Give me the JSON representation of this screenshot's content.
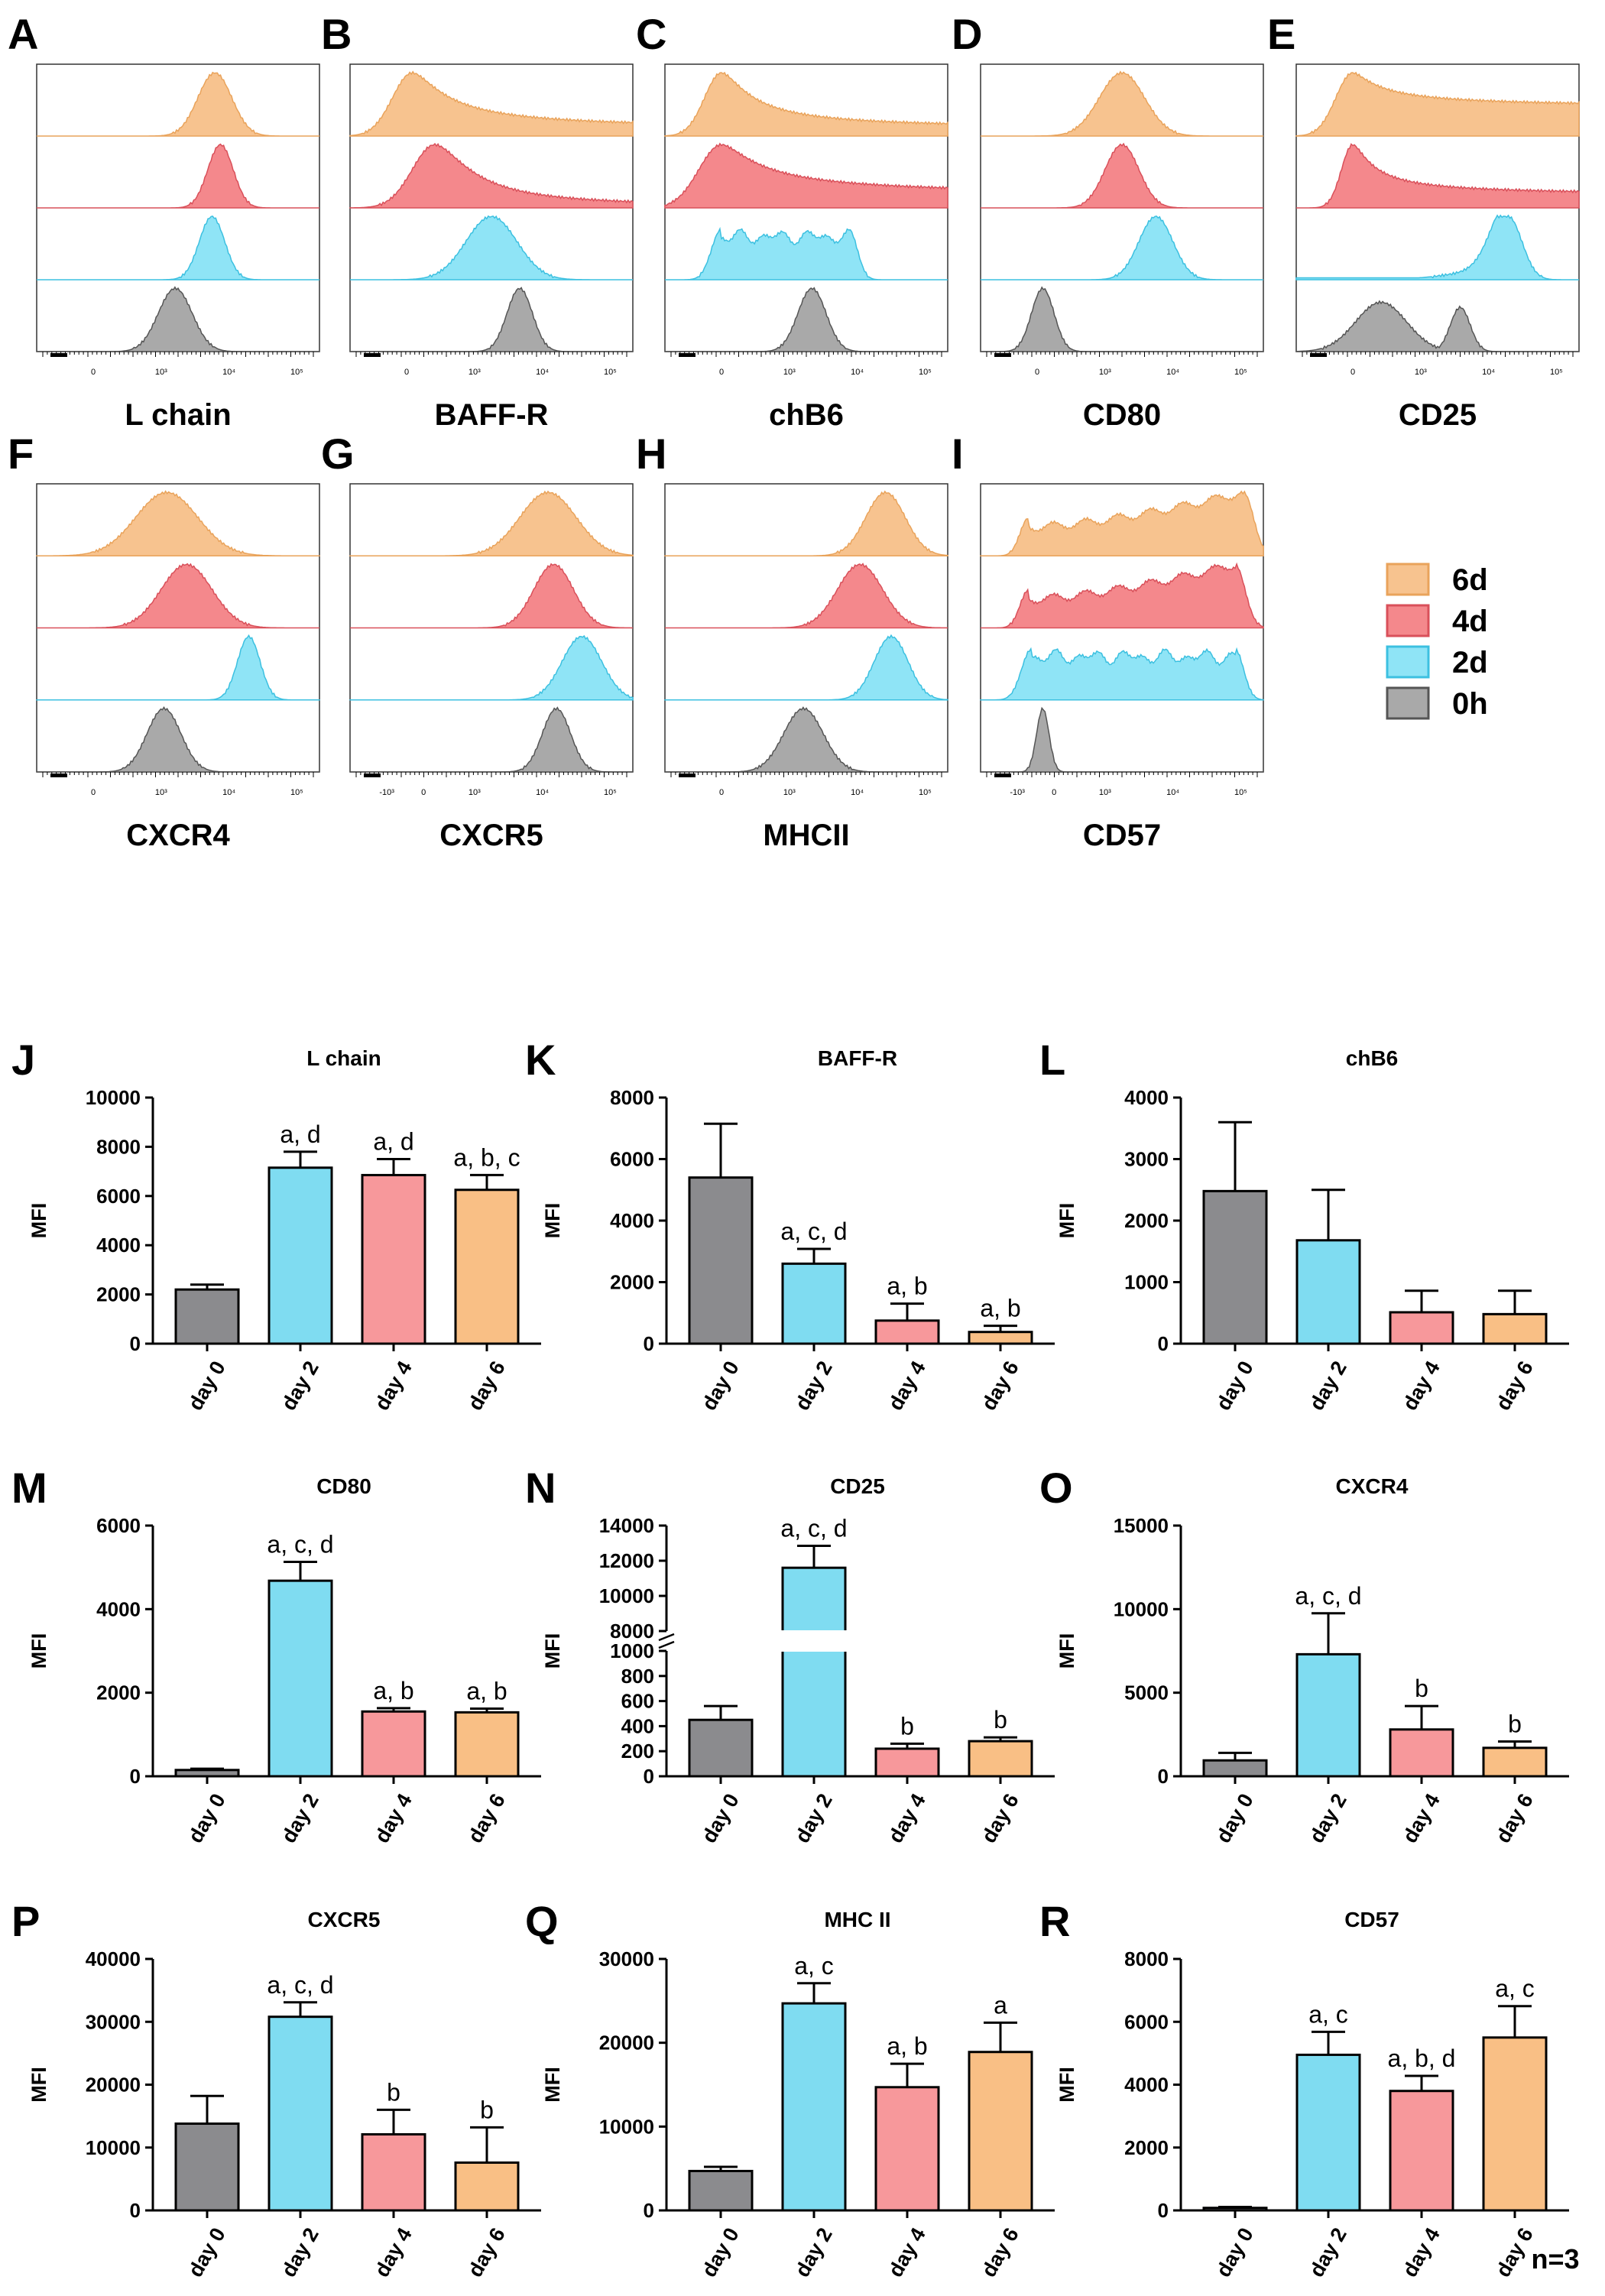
{
  "colors": {
    "0h": "#8b8b8e",
    "2d": "#7fdcf1",
    "4d": "#f7989b",
    "6d": "#f9bf85",
    "hist_0h_fill": "#a9a9a9",
    "hist_0h_line": "#555555",
    "hist_2d_fill": "#8fe4f6",
    "hist_2d_line": "#3cc0e0",
    "hist_4d_fill": "#f4888c",
    "hist_4d_line": "#d9505a",
    "hist_6d_fill": "#f7c38f",
    "hist_6d_line": "#e9a35b"
  },
  "legend": {
    "entries": [
      {
        "key": "6d",
        "label": "6d"
      },
      {
        "key": "4d",
        "label": "4d"
      },
      {
        "key": "2d",
        "label": "2d"
      },
      {
        "key": "0h",
        "label": "0h"
      }
    ]
  },
  "histograms": [
    {
      "letter": "A",
      "marker": "L chain",
      "ticks": [
        "0",
        "10³",
        "10⁴",
        "10⁵"
      ],
      "curves": {
        "6d": {
          "type": "normal",
          "peak": 0.63,
          "sd": 0.06
        },
        "4d": {
          "type": "normal",
          "peak": 0.65,
          "sd": 0.045
        },
        "2d": {
          "type": "normal",
          "peak": 0.62,
          "sd": 0.045
        },
        "0h": {
          "type": "normal",
          "peak": 0.49,
          "sd": 0.06
        }
      }
    },
    {
      "letter": "B",
      "marker": "BAFF-R",
      "ticks": [
        "0",
        "10³",
        "10⁴",
        "10⁵"
      ],
      "curves": {
        "6d": {
          "type": "skew",
          "peak": 0.22,
          "sd": 0.07,
          "tail": 0.3
        },
        "4d": {
          "type": "skew",
          "peak": 0.3,
          "sd": 0.08,
          "tail": 0.22
        },
        "2d": {
          "type": "normal",
          "peak": 0.5,
          "sd": 0.09
        },
        "0h": {
          "type": "normal",
          "peak": 0.6,
          "sd": 0.045
        }
      }
    },
    {
      "letter": "C",
      "marker": "chB6",
      "ticks": [
        "0",
        "10³",
        "10⁴",
        "10⁵"
      ],
      "curves": {
        "6d": {
          "type": "skew",
          "peak": 0.2,
          "sd": 0.06,
          "tail": 0.3
        },
        "4d": {
          "type": "skew",
          "peak": 0.2,
          "sd": 0.08,
          "tail": 0.35
        },
        "2d": {
          "type": "plateau",
          "from": 0.2,
          "to": 0.65
        },
        "0h": {
          "type": "normal",
          "peak": 0.52,
          "sd": 0.05
        }
      }
    },
    {
      "letter": "D",
      "marker": "CD80",
      "ticks": [
        "0",
        "10³",
        "10⁴",
        "10⁵"
      ],
      "curves": {
        "6d": {
          "type": "normal",
          "peak": 0.5,
          "sd": 0.08
        },
        "4d": {
          "type": "normal",
          "peak": 0.5,
          "sd": 0.06
        },
        "2d": {
          "type": "normal",
          "peak": 0.62,
          "sd": 0.06
        },
        "0h": {
          "type": "normal",
          "peak": 0.22,
          "sd": 0.04
        }
      }
    },
    {
      "letter": "E",
      "marker": "CD25",
      "ticks": [
        "0",
        "10³",
        "10⁴",
        "10⁵"
      ],
      "curves": {
        "6d": {
          "type": "skew",
          "peak": 0.2,
          "sd": 0.06,
          "tail": 0.5
        },
        "4d": {
          "type": "skew",
          "peak": 0.2,
          "sd": 0.04,
          "tail": 0.35
        },
        "2d": {
          "type": "rising",
          "peak": 0.75,
          "sd": 0.06
        },
        "0h": {
          "type": "bimodal",
          "p1": 0.3,
          "sd1": 0.09,
          "p2": 0.58,
          "sd2": 0.035
        }
      }
    },
    {
      "letter": "F",
      "marker": "CXCR4",
      "ticks": [
        "0",
        "10³",
        "10⁴",
        "10⁵"
      ],
      "curves": {
        "6d": {
          "type": "normal",
          "peak": 0.46,
          "sd": 0.11
        },
        "4d": {
          "type": "normal",
          "peak": 0.53,
          "sd": 0.09
        },
        "2d": {
          "type": "normal",
          "peak": 0.75,
          "sd": 0.04
        },
        "0h": {
          "type": "normal",
          "peak": 0.45,
          "sd": 0.06
        }
      }
    },
    {
      "letter": "G",
      "marker": "CXCR5",
      "ticks": [
        "-10³",
        "0",
        "10³",
        "10⁴",
        "10⁵"
      ],
      "curves": {
        "6d": {
          "type": "normal",
          "peak": 0.7,
          "sd": 0.1
        },
        "4d": {
          "type": "normal",
          "peak": 0.72,
          "sd": 0.07
        },
        "2d": {
          "type": "normal",
          "peak": 0.82,
          "sd": 0.07
        },
        "0h": {
          "type": "normal",
          "peak": 0.73,
          "sd": 0.05
        }
      }
    },
    {
      "letter": "H",
      "marker": "MHCII",
      "ticks": [
        "0",
        "10³",
        "10⁴",
        "10⁵"
      ],
      "curves": {
        "6d": {
          "type": "normal",
          "peak": 0.78,
          "sd": 0.07
        },
        "4d": {
          "type": "normal",
          "peak": 0.69,
          "sd": 0.08
        },
        "2d": {
          "type": "normal",
          "peak": 0.8,
          "sd": 0.06
        },
        "0h": {
          "type": "normal",
          "peak": 0.49,
          "sd": 0.07
        }
      }
    },
    {
      "letter": "I",
      "marker": "CD57",
      "ticks": [
        "-10³",
        "0",
        "10³",
        "10⁴",
        "10⁵"
      ],
      "curves": {
        "6d": {
          "type": "broad",
          "from": 0.17,
          "to": 0.93
        },
        "4d": {
          "type": "broad",
          "from": 0.17,
          "to": 0.9
        },
        "2d": {
          "type": "plateau",
          "from": 0.18,
          "to": 0.9
        },
        "0h": {
          "type": "normal",
          "peak": 0.22,
          "sd": 0.022
        }
      }
    }
  ],
  "chart_data": [
    {
      "panel": "J",
      "type": "bar",
      "title": "L chain",
      "ylabel": "MFI",
      "categories": [
        "day 0",
        "day 2",
        "day 4",
        "day 6"
      ],
      "values": [
        2200,
        7150,
        6850,
        6250
      ],
      "errors": [
        200,
        650,
        650,
        600
      ],
      "annotations": [
        "",
        "a, d",
        "a, d",
        "a, b, c"
      ],
      "ylim": [
        0,
        10000
      ],
      "yticks": [
        "0",
        "2000",
        "4000",
        "6000",
        "8000",
        "10000"
      ]
    },
    {
      "panel": "K",
      "type": "bar",
      "title": "BAFF-R",
      "ylabel": "MFI",
      "categories": [
        "day 0",
        "day 2",
        "day 4",
        "day 6"
      ],
      "values": [
        5400,
        2600,
        750,
        380
      ],
      "errors": [
        1750,
        480,
        550,
        200
      ],
      "annotations": [
        "",
        "a, c, d",
        "a, b",
        "a, b"
      ],
      "ylim": [
        0,
        8000
      ],
      "yticks": [
        "0",
        "2000",
        "4000",
        "6000",
        "8000"
      ]
    },
    {
      "panel": "L",
      "type": "bar",
      "title": "chB6",
      "ylabel": "MFI",
      "categories": [
        "day 0",
        "day 2",
        "day 4",
        "day 6"
      ],
      "values": [
        2480,
        1680,
        510,
        480
      ],
      "errors": [
        1120,
        820,
        350,
        380
      ],
      "annotations": [
        "",
        "",
        "",
        ""
      ],
      "ylim": [
        0,
        4000
      ],
      "yticks": [
        "0",
        "1000",
        "2000",
        "3000",
        "4000"
      ]
    },
    {
      "panel": "M",
      "type": "bar",
      "title": "CD80",
      "ylabel": "MFI",
      "categories": [
        "day 0",
        "day 2",
        "day 4",
        "day 6"
      ],
      "values": [
        150,
        4680,
        1550,
        1530
      ],
      "errors": [
        30,
        450,
        80,
        90
      ],
      "annotations": [
        "",
        "a, c, d",
        "a, b",
        "a, b"
      ],
      "ylim": [
        0,
        6000
      ],
      "yticks": [
        "0",
        "2000",
        "4000",
        "6000"
      ]
    },
    {
      "panel": "N",
      "type": "bar",
      "title": "CD25",
      "ylabel": "MFI",
      "categories": [
        "day 0",
        "day 2",
        "day 4",
        "day 6"
      ],
      "values": [
        450,
        11600,
        220,
        280
      ],
      "errors": [
        110,
        1250,
        40,
        30
      ],
      "annotations": [
        "",
        "a, c, d",
        "b",
        "b"
      ],
      "broken_axis": {
        "lower_max": 1000,
        "upper_min": 8000,
        "upper_max": 14000
      },
      "yticks_lower": [
        "0",
        "200",
        "400",
        "600",
        "800",
        "1000"
      ],
      "yticks_upper": [
        "8000",
        "10000",
        "12000",
        "14000"
      ]
    },
    {
      "panel": "O",
      "type": "bar",
      "title": "CXCR4",
      "ylabel": "MFI",
      "categories": [
        "day 0",
        "day 2",
        "day 4",
        "day 6"
      ],
      "values": [
        950,
        7300,
        2800,
        1700
      ],
      "errors": [
        450,
        2450,
        1400,
        380
      ],
      "annotations": [
        "",
        "a, c, d",
        "b",
        "b"
      ],
      "ylim": [
        0,
        15000
      ],
      "yticks": [
        "0",
        "5000",
        "10000",
        "15000"
      ]
    },
    {
      "panel": "P",
      "type": "bar",
      "title": "CXCR5",
      "ylabel": "MFI",
      "categories": [
        "day 0",
        "day 2",
        "day 4",
        "day 6"
      ],
      "values": [
        13800,
        30800,
        12100,
        7600
      ],
      "errors": [
        4400,
        2300,
        3900,
        5600
      ],
      "annotations": [
        "",
        "a, c, d",
        "b",
        "b"
      ],
      "ylim": [
        0,
        40000
      ],
      "yticks": [
        "0",
        "10000",
        "20000",
        "30000",
        "40000"
      ]
    },
    {
      "panel": "Q",
      "type": "bar",
      "title": "MHC II",
      "ylabel": "MFI",
      "categories": [
        "day 0",
        "day 2",
        "day 4",
        "day 6"
      ],
      "values": [
        4700,
        24700,
        14700,
        18900
      ],
      "errors": [
        500,
        2400,
        2800,
        3500
      ],
      "annotations": [
        "",
        "a, c",
        "a, b",
        "a"
      ],
      "ylim": [
        0,
        30000
      ],
      "yticks": [
        "0",
        "10000",
        "20000",
        "30000"
      ]
    },
    {
      "panel": "R",
      "type": "bar",
      "title": "CD57",
      "ylabel": "MFI",
      "categories": [
        "day 0",
        "day 2",
        "day 4",
        "day 6"
      ],
      "values": [
        80,
        4950,
        3800,
        5500
      ],
      "errors": [
        30,
        730,
        480,
        1000
      ],
      "annotations": [
        "",
        "a, c",
        "a, b, d",
        "a, c"
      ],
      "ylim": [
        0,
        8000
      ],
      "yticks": [
        "0",
        "2000",
        "4000",
        "6000",
        "8000"
      ]
    }
  ],
  "footnote": "n=3"
}
